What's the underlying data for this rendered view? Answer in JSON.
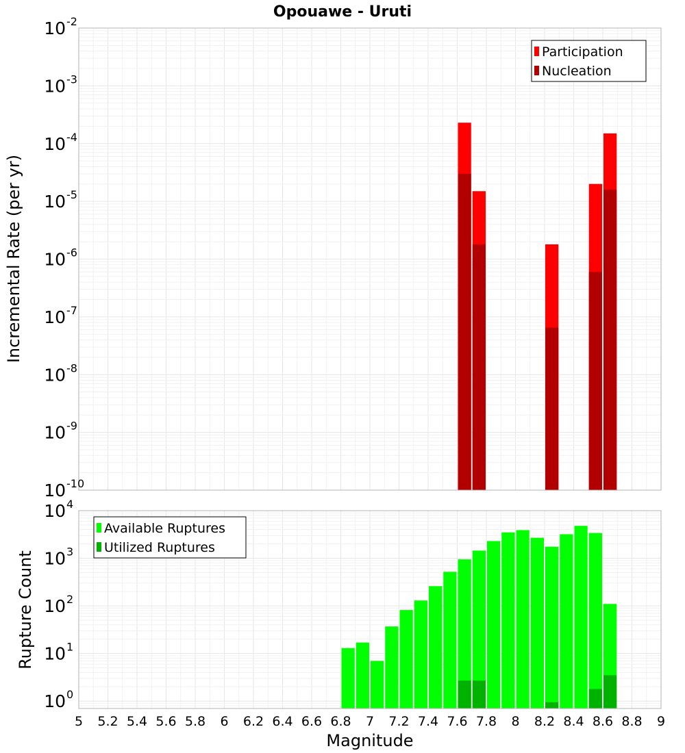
{
  "chart_data": [
    {
      "type": "bar",
      "title": "Opouawe - Uruti",
      "ylabel": "Incremental Rate (per yr)",
      "xlabel": "",
      "xlim": [
        5,
        9
      ],
      "ylim": [
        1e-10,
        0.01
      ],
      "yscale": "log",
      "yticks": [
        {
          "base": "10",
          "exp": "-2",
          "value": 0.01
        },
        {
          "base": "10",
          "exp": "-3",
          "value": 0.001
        },
        {
          "base": "10",
          "exp": "-4",
          "value": 0.0001
        },
        {
          "base": "10",
          "exp": "-5",
          "value": 1e-05
        },
        {
          "base": "10",
          "exp": "-6",
          "value": 1e-06
        },
        {
          "base": "10",
          "exp": "-7",
          "value": 1e-07
        },
        {
          "base": "10",
          "exp": "-8",
          "value": 1e-08
        },
        {
          "base": "10",
          "exp": "-9",
          "value": 1e-09
        },
        {
          "base": "10",
          "exp": "-10",
          "value": 1e-10
        }
      ],
      "bar_width": 0.1,
      "legend_position": "top-right",
      "grid": true,
      "series": [
        {
          "name": "Participation",
          "color": "#ff0000",
          "points": [
            {
              "x": 7.65,
              "y": 0.00023
            },
            {
              "x": 7.75,
              "y": 1.5e-05
            },
            {
              "x": 8.25,
              "y": 1.8e-06
            },
            {
              "x": 8.55,
              "y": 2e-05
            },
            {
              "x": 8.65,
              "y": 0.00015
            }
          ]
        },
        {
          "name": "Nucleation",
          "color": "#b20000",
          "points": [
            {
              "x": 7.65,
              "y": 3e-05
            },
            {
              "x": 7.75,
              "y": 1.8e-06
            },
            {
              "x": 8.25,
              "y": 6.5e-08
            },
            {
              "x": 8.55,
              "y": 6e-07
            },
            {
              "x": 8.65,
              "y": 1.6e-05
            }
          ]
        }
      ]
    },
    {
      "type": "bar",
      "title": "",
      "ylabel": "Rupture Count",
      "xlabel": "Magnitude",
      "xlim": [
        5,
        9
      ],
      "ylim": [
        0.7,
        10000
      ],
      "yscale": "log",
      "yticks": [
        {
          "base": "10",
          "exp": "4",
          "value": 10000.0
        },
        {
          "base": "10",
          "exp": "3",
          "value": 1000.0
        },
        {
          "base": "10",
          "exp": "2",
          "value": 100.0
        },
        {
          "base": "10",
          "exp": "1",
          "value": 10.0
        },
        {
          "base": "10",
          "exp": "0",
          "value": 1
        }
      ],
      "xticks": [
        "5",
        "5.2",
        "5.4",
        "5.6",
        "5.8",
        "6",
        "6.2",
        "6.4",
        "6.6",
        "6.8",
        "7",
        "7.2",
        "7.4",
        "7.6",
        "7.8",
        "8",
        "8.2",
        "8.4",
        "8.6",
        "8.8",
        "9"
      ],
      "bar_width": 0.1,
      "legend_position": "top-left",
      "grid": true,
      "series": [
        {
          "name": "Available Ruptures",
          "color": "#00ff00",
          "points": [
            {
              "x": 6.85,
              "y": 13
            },
            {
              "x": 6.95,
              "y": 17
            },
            {
              "x": 7.05,
              "y": 7
            },
            {
              "x": 7.15,
              "y": 37
            },
            {
              "x": 7.25,
              "y": 82
            },
            {
              "x": 7.35,
              "y": 130
            },
            {
              "x": 7.45,
              "y": 260
            },
            {
              "x": 7.55,
              "y": 520
            },
            {
              "x": 7.65,
              "y": 950
            },
            {
              "x": 7.75,
              "y": 1450
            },
            {
              "x": 7.85,
              "y": 2300
            },
            {
              "x": 7.95,
              "y": 3500
            },
            {
              "x": 8.05,
              "y": 3900
            },
            {
              "x": 8.15,
              "y": 2700
            },
            {
              "x": 8.25,
              "y": 1750
            },
            {
              "x": 8.35,
              "y": 3200
            },
            {
              "x": 8.45,
              "y": 4800
            },
            {
              "x": 8.55,
              "y": 3400
            },
            {
              "x": 8.65,
              "y": 110
            }
          ]
        },
        {
          "name": "Utilized Ruptures",
          "color": "#00b200",
          "points": [
            {
              "x": 7.65,
              "y": 2.7
            },
            {
              "x": 7.75,
              "y": 2.7
            },
            {
              "x": 8.25,
              "y": 0.95
            },
            {
              "x": 8.55,
              "y": 1.8
            },
            {
              "x": 8.65,
              "y": 3.5
            }
          ]
        }
      ]
    }
  ]
}
